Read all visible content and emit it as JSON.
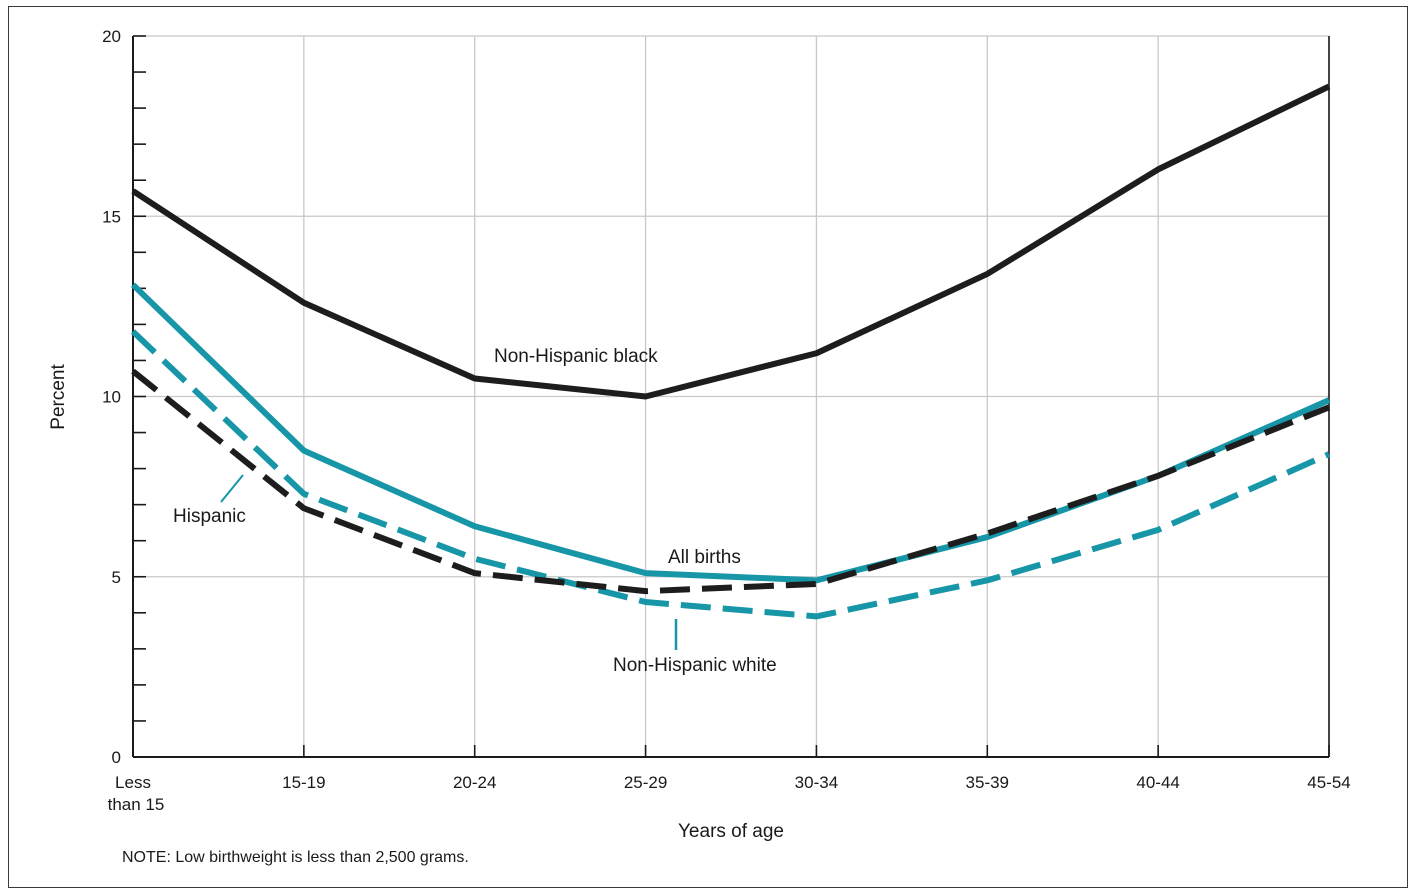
{
  "chart_data": {
    "type": "line",
    "title": "",
    "xlabel": "Years of age",
    "ylabel": "Percent",
    "categories": [
      [
        "Less",
        "than 15"
      ],
      [
        "15-19"
      ],
      [
        "20-24"
      ],
      [
        "25-29"
      ],
      [
        "30-34"
      ],
      [
        "35-39"
      ],
      [
        "40-44"
      ],
      [
        "45-54"
      ]
    ],
    "ylim": [
      0,
      20
    ],
    "yticks": [
      "0",
      "5",
      "10",
      "15",
      "20"
    ],
    "grid": true,
    "series": [
      {
        "name": "Non-Hispanic black",
        "values": [
          15.7,
          12.6,
          10.5,
          10.0,
          11.2,
          13.4,
          16.3,
          18.6
        ],
        "color": "#1d1d1d",
        "style": "solid"
      },
      {
        "name": "All births",
        "values": [
          13.1,
          8.5,
          6.4,
          5.1,
          4.9,
          6.1,
          7.8,
          9.9
        ],
        "color": "#1796a8",
        "style": "solid"
      },
      {
        "name": "Hispanic",
        "values": [
          11.8,
          7.3,
          5.5,
          4.3,
          3.9,
          4.9,
          6.3,
          8.4
        ],
        "color": "#1796a8",
        "style": "dashed"
      },
      {
        "name": "Non-Hispanic white",
        "values": [
          10.7,
          6.9,
          5.1,
          4.6,
          4.8,
          6.2,
          7.8,
          9.7
        ],
        "color": "#1d1d1d",
        "style": "dashed"
      }
    ]
  },
  "note": "NOTE:  Low birthweight is less than 2,500 grams."
}
